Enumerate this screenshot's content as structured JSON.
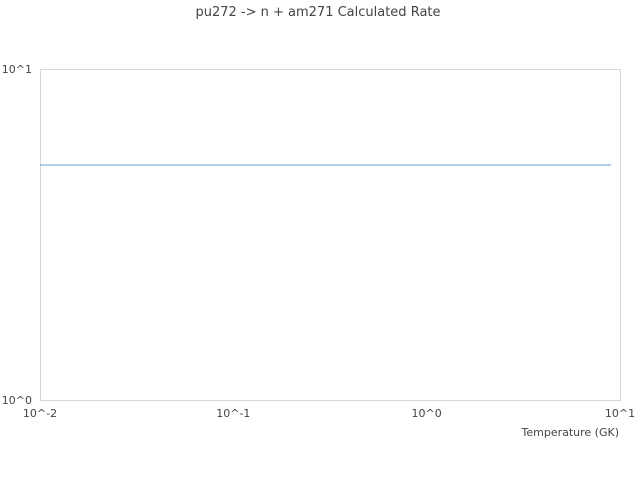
{
  "chart_data": {
    "type": "line",
    "title": "pu272 -> n + am271 Calculated Rate",
    "xlabel": "Temperature (GK)",
    "ylabel": "",
    "xscale": "log",
    "yscale": "log",
    "xlim": [
      0.01,
      10
    ],
    "ylim": [
      1,
      10
    ],
    "xticks": [
      "10^-2",
      "10^-1",
      "10^0",
      "10^1"
    ],
    "yticks": [
      "10^0",
      "10^1"
    ],
    "grid": false,
    "series": [
      {
        "color": "#6a9fd8",
        "x": [
          0.01,
          9
        ],
        "y": [
          5.13,
          5.13
        ]
      }
    ]
  }
}
